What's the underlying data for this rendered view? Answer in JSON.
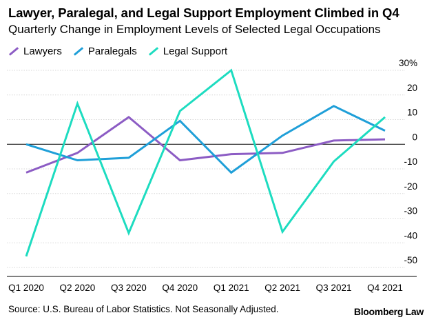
{
  "header": {
    "title": "Lawyer, Paralegal, and Legal Support Employment Climbed in Q4",
    "subtitle": "Quarterly Change in Employment Levels of Selected Legal Occupations"
  },
  "footer": {
    "source": "U.S. Bureau of Labor Statistics. Not Seasonally Adjusted.",
    "source_label": "Source: ",
    "source_full": "Source: U.S. Bureau of Labor Statistics. Not Seasonally Adjusted.",
    "brand": "Bloomberg Law"
  },
  "chart_data": {
    "type": "line",
    "title": "Lawyer, Paralegal, and Legal Support Employment Climbed in Q4",
    "subtitle": "Quarterly Change in Employment Levels of Selected Legal Occupations",
    "xlabel": "",
    "ylabel": "",
    "categories": [
      "Q1 2020",
      "Q2 2020",
      "Q3 2020",
      "Q4 2020",
      "Q1 2021",
      "Q2 2021",
      "Q3 2021",
      "Q4 2021"
    ],
    "ylim": [
      -50,
      30
    ],
    "yticks": [
      30,
      20,
      10,
      0,
      -10,
      -20,
      -30,
      -40,
      -50
    ],
    "ytick_labels": [
      "30%",
      "20",
      "10",
      "0",
      "-10",
      "-20",
      "-30",
      "-40",
      "-50"
    ],
    "grid": true,
    "zero_line": true,
    "legend_position": "top-left",
    "series": [
      {
        "name": "Lawyers",
        "color": "#8c5cc4",
        "values": [
          -11.5,
          -3.5,
          11,
          -6.5,
          -4,
          -3.5,
          1.5,
          2
        ]
      },
      {
        "name": "Paralegals",
        "color": "#1f9fd8",
        "values": [
          0,
          -6.5,
          -5.5,
          9.5,
          -11.5,
          3.5,
          15.5,
          5.5
        ]
      },
      {
        "name": "Legal Support",
        "color": "#1ddcc0",
        "values": [
          -45.5,
          16.5,
          -36,
          13.5,
          30,
          -35.5,
          -7,
          11
        ]
      }
    ]
  }
}
